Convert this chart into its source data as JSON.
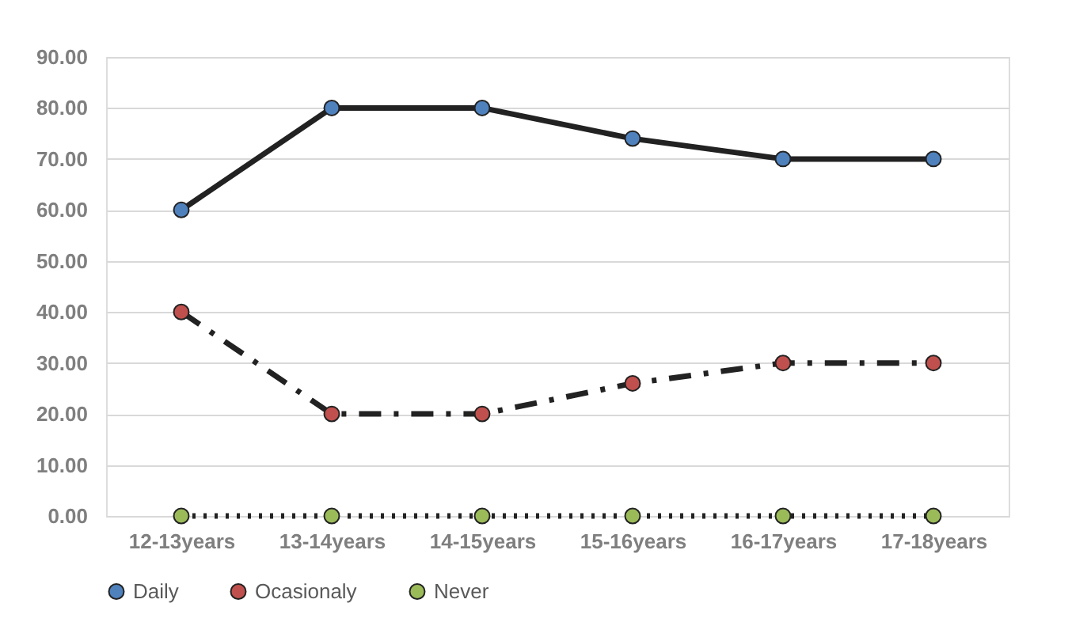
{
  "chart_data": {
    "type": "line",
    "categories": [
      "12-13years",
      "13-14years",
      "14-15years",
      "15-16years",
      "16-17years",
      "17-18years"
    ],
    "series": [
      {
        "name": "Daily",
        "color": "#4f81bd",
        "line_style": "solid",
        "values": [
          60,
          80,
          80,
          74,
          70,
          70
        ]
      },
      {
        "name": "Ocasionaly",
        "color": "#c0504d",
        "line_style": "dashed",
        "values": [
          40,
          20,
          20,
          26,
          30,
          30
        ]
      },
      {
        "name": "Never",
        "color": "#9bbb59",
        "line_style": "dotted",
        "values": [
          0,
          0,
          0,
          0,
          0,
          0
        ]
      }
    ],
    "ylim": [
      0,
      90
    ],
    "yticks": [
      {
        "value": 0,
        "label": "0.00"
      },
      {
        "value": 10,
        "label": "10.00"
      },
      {
        "value": 20,
        "label": "20.00"
      },
      {
        "value": 30,
        "label": "30.00"
      },
      {
        "value": 40,
        "label": "40.00"
      },
      {
        "value": 50,
        "label": "50.00"
      },
      {
        "value": 60,
        "label": "60.00"
      },
      {
        "value": 70,
        "label": "70.00"
      },
      {
        "value": 80,
        "label": "80.00"
      },
      {
        "value": 90,
        "label": "90.00"
      }
    ],
    "grid": "y",
    "legend": "bottom",
    "marker": "circle"
  }
}
